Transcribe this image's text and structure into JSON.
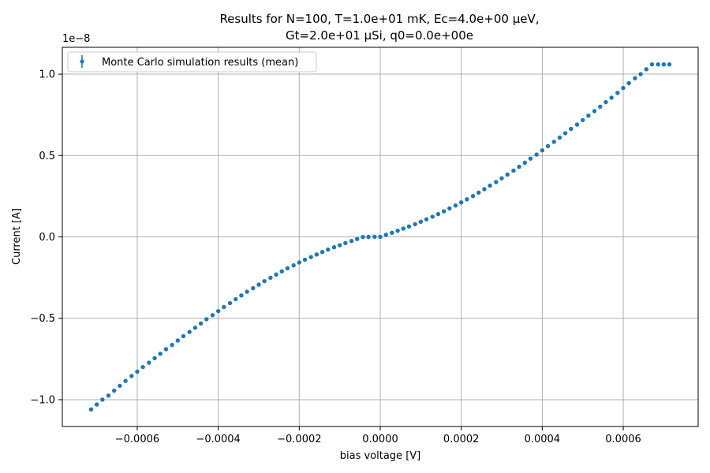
{
  "chart_data": {
    "type": "scatter",
    "title_line1": "Results for N=100, T=1.0e+01 mK, Ec=4.0e+00 μeV,",
    "title_line2": "Gt=2.0e+01 μSi, q0=0.0e+00e",
    "xlabel": "bias voltage [V]",
    "ylabel": "Current [A]",
    "y_offset_label": "1e−8",
    "xlim": [
      -0.000785,
      0.000785
    ],
    "ylim": [
      -1.165e-08,
      1.165e-08
    ],
    "grid": true,
    "legend_position": "upper-left",
    "x_ticks": [
      {
        "value": -0.0006,
        "label": "−0.0006"
      },
      {
        "value": -0.0004,
        "label": "−0.0004"
      },
      {
        "value": -0.0002,
        "label": "−0.0002"
      },
      {
        "value": 0.0,
        "label": "0.0000"
      },
      {
        "value": 0.0002,
        "label": "0.0002"
      },
      {
        "value": 0.0004,
        "label": "0.0004"
      },
      {
        "value": 0.0006,
        "label": "0.0006"
      }
    ],
    "y_ticks": [
      {
        "value": -1e-08,
        "label": "−1.0"
      },
      {
        "value": -5e-09,
        "label": "−0.5"
      },
      {
        "value": 0.0,
        "label": "0.0"
      },
      {
        "value": 5e-09,
        "label": "0.5"
      },
      {
        "value": 1e-08,
        "label": "1.0"
      }
    ],
    "series": [
      {
        "name": "Monte Carlo simulation results (mean)",
        "color": "#1f77b4",
        "marker": "dot-with-errorbar",
        "x": [
          -0.000714,
          -0.0007,
          -0.000686,
          -0.000671,
          -0.000657,
          -0.000643,
          -0.000629,
          -0.000614,
          -0.0006,
          -0.000586,
          -0.000571,
          -0.000557,
          -0.000543,
          -0.000529,
          -0.000514,
          -0.0005,
          -0.000486,
          -0.000471,
          -0.000457,
          -0.000443,
          -0.000429,
          -0.000414,
          -0.0004,
          -0.000386,
          -0.000371,
          -0.000357,
          -0.000343,
          -0.000329,
          -0.000314,
          -0.0003,
          -0.000286,
          -0.000271,
          -0.000257,
          -0.000243,
          -0.000229,
          -0.000214,
          -0.0002,
          -0.000186,
          -0.000171,
          -0.000157,
          -0.000143,
          -0.000129,
          -0.000114,
          -0.0001,
          -8.6e-05,
          -7.1e-05,
          -5.7e-05,
          -4.3e-05,
          -2.9e-05,
          -1.4e-05,
          0.0,
          1.4e-05,
          2.9e-05,
          4.3e-05,
          5.7e-05,
          7.1e-05,
          8.6e-05,
          0.0001,
          0.000114,
          0.000129,
          0.000143,
          0.000157,
          0.000171,
          0.000186,
          0.0002,
          0.000214,
          0.000229,
          0.000243,
          0.000257,
          0.000271,
          0.000286,
          0.0003,
          0.000314,
          0.000329,
          0.000343,
          0.000357,
          0.000371,
          0.000386,
          0.0004,
          0.000414,
          0.000429,
          0.000443,
          0.000457,
          0.000471,
          0.000486,
          0.0005,
          0.000514,
          0.000529,
          0.000543,
          0.000557,
          0.000571,
          0.000586,
          0.0006,
          0.000614,
          0.000629,
          0.000643,
          0.000657,
          0.000671,
          0.000686,
          0.0007,
          0.000714
        ],
        "y": [
          -1.06e-08,
          -1.03e-08,
          -1e-08,
          -9.75e-09,
          -9.45e-09,
          -9.15e-09,
          -8.85e-09,
          -8.55e-09,
          -8.28e-09,
          -8e-09,
          -7.73e-09,
          -7.45e-09,
          -7.18e-09,
          -6.9e-09,
          -6.64e-09,
          -6.37e-09,
          -6.1e-09,
          -5.84e-09,
          -5.58e-09,
          -5.32e-09,
          -5.06e-09,
          -4.81e-09,
          -4.56e-09,
          -4.31e-09,
          -4.07e-09,
          -3.83e-09,
          -3.6e-09,
          -3.37e-09,
          -3.15e-09,
          -2.93e-09,
          -2.72e-09,
          -2.51e-09,
          -2.31e-09,
          -2.12e-09,
          -1.93e-09,
          -1.75e-09,
          -1.57e-09,
          -1.4e-09,
          -1.24e-09,
          -1.08e-09,
          -9.3e-10,
          -7.8e-10,
          -6.4e-10,
          -5.1e-10,
          -3.8e-10,
          -2.5e-10,
          -1.3e-10,
          -1e-11,
          0.0,
          1e-11,
          0.0,
          1.3e-10,
          2.5e-10,
          3.8e-10,
          5.1e-10,
          6.4e-10,
          7.8e-10,
          9.3e-10,
          1.08e-09,
          1.24e-09,
          1.4e-09,
          1.57e-09,
          1.75e-09,
          1.93e-09,
          2.12e-09,
          2.31e-09,
          2.51e-09,
          2.72e-09,
          2.93e-09,
          3.15e-09,
          3.37e-09,
          3.6e-09,
          3.83e-09,
          4.07e-09,
          4.31e-09,
          4.56e-09,
          4.81e-09,
          5.06e-09,
          5.32e-09,
          5.58e-09,
          5.84e-09,
          6.1e-09,
          6.37e-09,
          6.64e-09,
          6.9e-09,
          7.18e-09,
          7.45e-09,
          7.73e-09,
          8e-09,
          8.28e-09,
          8.55e-09,
          8.85e-09,
          9.15e-09,
          9.45e-09,
          9.75e-09,
          1e-08,
          1.03e-08,
          1.06e-08,
          1.06e-08,
          1.06e-08,
          1.06e-08
        ]
      }
    ]
  }
}
